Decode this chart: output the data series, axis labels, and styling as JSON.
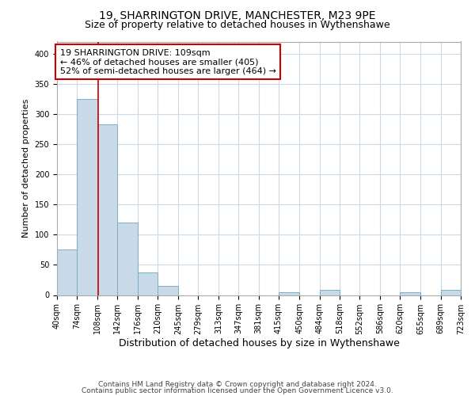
{
  "title1": "19, SHARRINGTON DRIVE, MANCHESTER, M23 9PE",
  "title2": "Size of property relative to detached houses in Wythenshawe",
  "xlabel": "Distribution of detached houses by size in Wythenshawe",
  "ylabel": "Number of detached properties",
  "bar_values": [
    75,
    325,
    283,
    120,
    38,
    15,
    0,
    0,
    0,
    0,
    0,
    5,
    0,
    8,
    0,
    0,
    0,
    5,
    0,
    8
  ],
  "bin_edges": [
    40,
    74,
    108,
    142,
    176,
    210,
    245,
    279,
    313,
    347,
    381,
    415,
    450,
    484,
    518,
    552,
    586,
    620,
    655,
    689,
    723
  ],
  "tick_labels": [
    "40sqm",
    "74sqm",
    "108sqm",
    "142sqm",
    "176sqm",
    "210sqm",
    "245sqm",
    "279sqm",
    "313sqm",
    "347sqm",
    "381sqm",
    "415sqm",
    "450sqm",
    "484sqm",
    "518sqm",
    "552sqm",
    "586sqm",
    "620sqm",
    "655sqm",
    "689sqm",
    "723sqm"
  ],
  "bar_color": "#c8d9e8",
  "bar_edge_color": "#7aafc8",
  "grid_color": "#ccd9e6",
  "property_line_x": 109,
  "annotation_text": "19 SHARRINGTON DRIVE: 109sqm\n← 46% of detached houses are smaller (405)\n52% of semi-detached houses are larger (464) →",
  "annotation_box_color": "#ffffff",
  "annotation_box_edge": "#cc0000",
  "vline_color": "#cc0000",
  "footnote1": "Contains HM Land Registry data © Crown copyright and database right 2024.",
  "footnote2": "Contains public sector information licensed under the Open Government Licence v3.0.",
  "ylim": [
    0,
    420
  ],
  "xlim": [
    40,
    723
  ],
  "title1_fontsize": 10,
  "title2_fontsize": 9,
  "xlabel_fontsize": 9,
  "ylabel_fontsize": 8,
  "tick_fontsize": 7,
  "annot_fontsize": 8,
  "footnote_fontsize": 6.5
}
